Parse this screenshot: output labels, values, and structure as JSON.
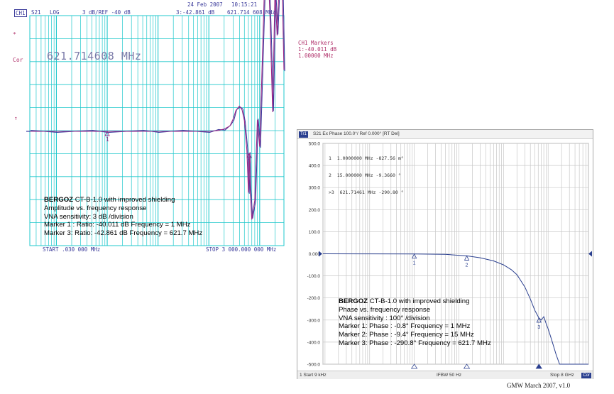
{
  "amplitude_screen": {
    "header": {
      "date": "24 Feb 2007",
      "time": "10:15:21",
      "channel": "CH1",
      "param": "S21",
      "format": "LOG",
      "scale": "3 dB/REF -40 dB",
      "marker_readout": "3:-42.861 dB",
      "marker_freq": "621.714 608 MHz"
    },
    "side_labels": {
      "star": "*",
      "cor": "Cor",
      "ref_arrow": "↑"
    },
    "big_readout": "621.714608 MHz",
    "markers_panel": {
      "title": "CH1 Markers",
      "line1": "1:-40.011 dB",
      "line2": "1.00000 MHz"
    },
    "start_label": "START  .030 000 MHz",
    "stop_label": "STOP 3 000.000 000 MHz",
    "marker_labels": {
      "m1": "1",
      "m3": "3"
    },
    "caption": {
      "brand": "BERGOZ",
      "title_rest": " CT-B-1.0 with improved  shielding",
      "line2": "Amplitude vs. frequency response",
      "line3": "VNA sensitivity: 3 dB /division",
      "line4": "Marker 1 : Ratio: -40.011 dB Frequency = 1 MHz",
      "line5": "Marker 3: Ratio: -42.861 dB  Frequency = 621.7 MHz"
    },
    "colors": {
      "grid": "#20c8cc",
      "trace1": "#9a2a8a",
      "trace2": "#3b3b9e",
      "text": "#3a3a9a"
    }
  },
  "phase_screen": {
    "title": {
      "channel": "Tr1",
      "text": "S21 Ex Phase 100.0°/ Ref 0.000° [RT Del]"
    },
    "marker_table": [
      "1  1.0000000 MHz -827.56 m°",
      "2  15.000000 MHz -9.3660 °",
      ">3  621.71461 MHz -290.80 °"
    ],
    "footer": {
      "start": "1 Start 9 kHz",
      "ifbw": "IFBW 50 Hz",
      "stop": "Stop 8 GHz",
      "cor": "Cor"
    },
    "marker_labels": {
      "m1": "1",
      "m2": "2",
      "m3": "3"
    },
    "caption": {
      "brand": "BERGOZ",
      "title_rest": " CT-B-1.0 with improved  shielding",
      "line2": "Phase vs. frequency response",
      "line3": "VNA sensitivity : 100° /division",
      "line4": "Marker 1: Phase : -0.8° Frequency = 1 MHz",
      "line5": "Marker 2: Phase : -9.4° Frequency = 15 MHz",
      "line6": "Marker 3: Phase : -290.8°  Frequency = 621.7 MHz"
    },
    "colors": {
      "grid": "#c8c8c8",
      "trace": "#2a3f8f",
      "text": "#333333"
    }
  },
  "credit": "GMW March 2007, v1.0",
  "chart_data": [
    {
      "type": "line",
      "title": "",
      "xscale": "log",
      "xlim": [
        0.03,
        3000
      ],
      "ylabel": "",
      "yscale_per_div": 3,
      "ref": -40,
      "series": [
        {
          "x": [
            0.03,
            0.1,
            0.5,
            1,
            5,
            10,
            30,
            100,
            150,
            200,
            260,
            300,
            340,
            400,
            450,
            500,
            560,
            600,
            621.7,
            650,
            700,
            800,
            900,
            1000,
            1100,
            1250,
            1400,
            1600,
            1800,
            2000,
            2200,
            2500,
            2800,
            3000
          ],
          "values": [
            -40.0,
            -40.0,
            -40.0,
            -40.01,
            -40.0,
            -40.0,
            -40.0,
            -40.0,
            -39.9,
            -39.7,
            -39.3,
            -38.4,
            -37.3,
            -36.7,
            -37.2,
            -38.6,
            -42.5,
            -48.0,
            -42.86,
            -47.5,
            -51.5,
            -49.0,
            -38.5,
            -42.0,
            -33.0,
            -20.5,
            -15.0,
            -25.5,
            -37.5,
            -21.5,
            -27.5,
            -18.5,
            -22.5,
            -32.0
          ]
        }
      ],
      "markers": [
        {
          "id": "1",
          "x": 1,
          "y": -40.011
        },
        {
          "id": "3",
          "x": 621.7,
          "y": -42.861
        }
      ]
    },
    {
      "type": "line",
      "title": "",
      "xscale": "log",
      "xlim": [
        0.009,
        8000
      ],
      "ylim": [
        -500,
        500
      ],
      "yticks": [
        500,
        400,
        300,
        200,
        100,
        0,
        -100,
        -200,
        -300,
        -400,
        -500
      ],
      "ytick_labels": [
        "500.0",
        "400.0",
        "300.0",
        "200.0",
        "100.0",
        "0.000",
        "-100.0",
        "-200.0",
        "-300.0",
        "-400.0",
        "-500.0"
      ],
      "series": [
        {
          "x": [
            0.009,
            0.1,
            1,
            5,
            15,
            30,
            60,
            100,
            150,
            200,
            300,
            400,
            500,
            621.7,
            700,
            800,
            900,
            1000,
            1200,
            1500,
            1800,
            2000,
            8000
          ],
          "values": [
            0,
            -0.3,
            -0.8,
            -2.5,
            -9.4,
            -18,
            -32,
            -50,
            -72,
            -95,
            -150,
            -205,
            -255,
            -290.8,
            -300,
            -285,
            -315,
            -340,
            -390,
            -455,
            -500,
            -500,
            -500
          ]
        }
      ],
      "markers": [
        {
          "id": "1",
          "x": 1,
          "y": -0.8
        },
        {
          "id": "2",
          "x": 15,
          "y": -9.4
        },
        {
          "id": "3",
          "x": 621.7,
          "y": -290.8
        }
      ]
    }
  ]
}
